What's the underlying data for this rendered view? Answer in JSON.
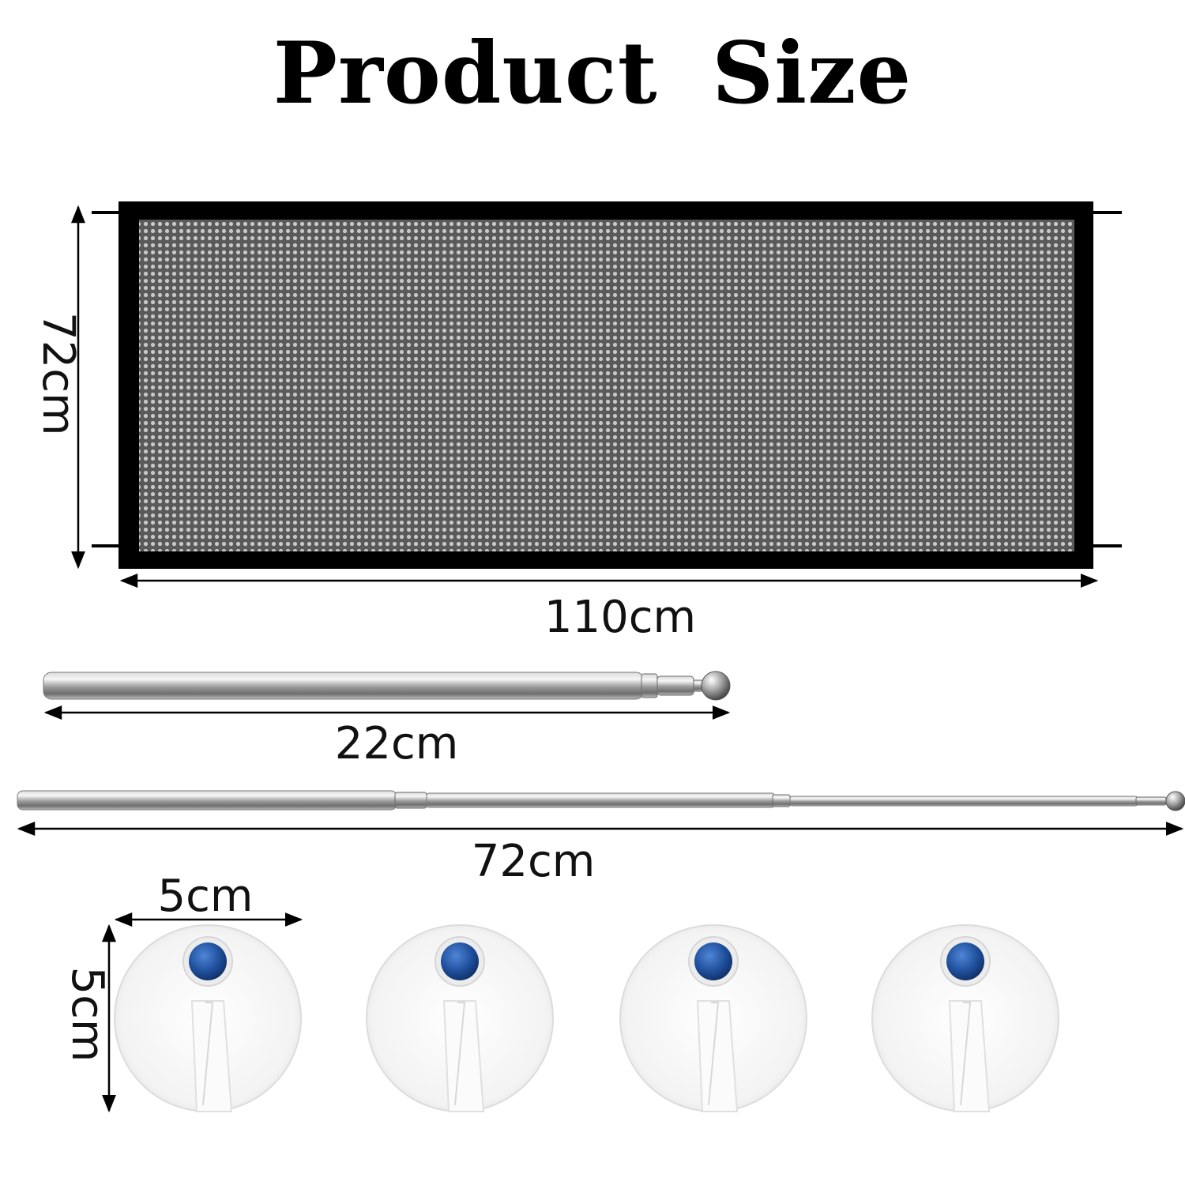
{
  "title": "Product Size",
  "mesh_panel": {
    "height_label": "72cm",
    "width_label": "110cm",
    "border_color": "#000000",
    "mesh_color": "#6f6f6f"
  },
  "short_rod": {
    "length_label": "22cm"
  },
  "long_rod": {
    "length_label": "72cm"
  },
  "hooks": {
    "count": 4,
    "width_label": "5cm",
    "height_label": "5cm",
    "button_color": "#1f4f9c",
    "disc_color": "#f4f4f4"
  }
}
